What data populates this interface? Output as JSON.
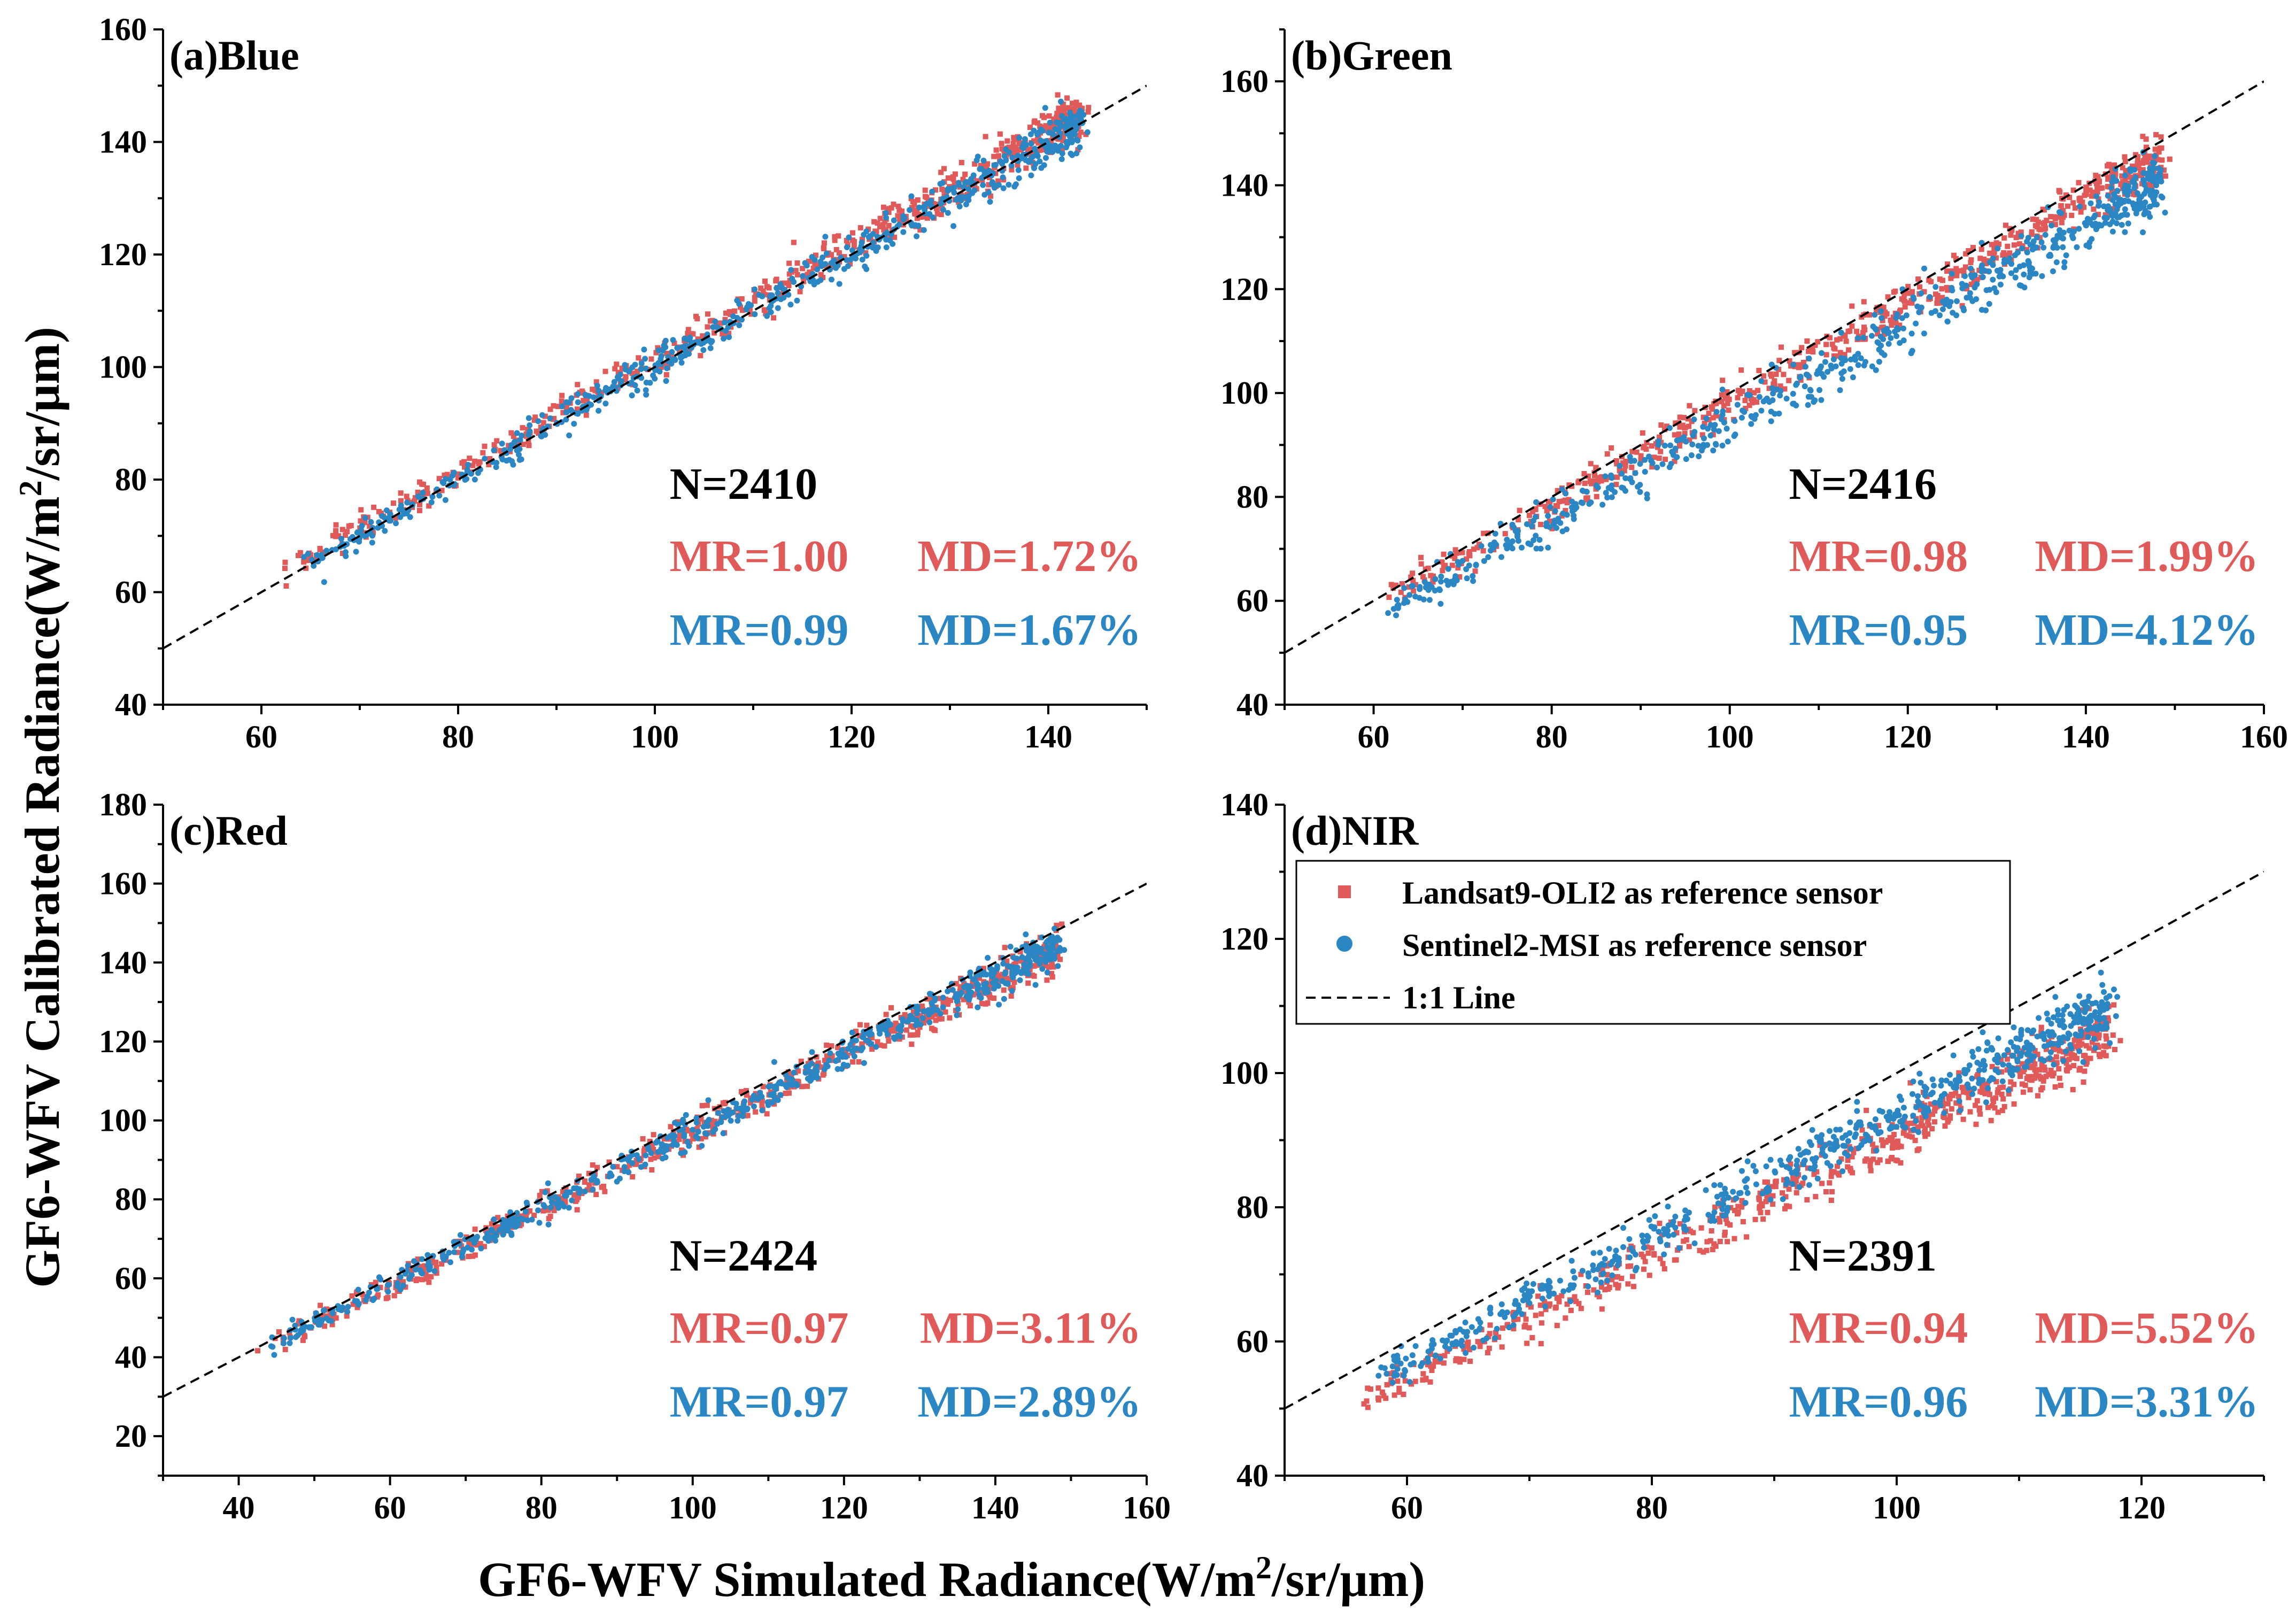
{
  "figure": {
    "ylabel": "GF6-WFV Calibrated Radiance(W/m²/sr/μm)",
    "ylabel_main": "GF6-WFV Calibrated Radiance(W/m",
    "ylabel_tail": "/sr/μm)",
    "xlabel": "GF6-WFV Simulated Radiance(W/m²/sr/μm)",
    "xlabel_main": "GF6-WFV Simulated Radiance(W/m",
    "xlabel_tail": "/sr/μm)",
    "unit_sup": "2"
  },
  "colors": {
    "landsat": "#e05a5a",
    "sentinel": "#2b86c4",
    "line": "#000000"
  },
  "legend": {
    "items": [
      {
        "label": "Landsat9-OLI2 as reference sensor",
        "marker": "square",
        "color": "#e05a5a"
      },
      {
        "label": "Sentinel2-MSI as reference sensor",
        "marker": "circle",
        "color": "#2b86c4"
      },
      {
        "label": "1:1 Line",
        "marker": "dashed-line",
        "color": "#000000"
      }
    ]
  },
  "chart_data": [
    {
      "type": "scatter",
      "title": "(a)Blue",
      "xlim": [
        50,
        150
      ],
      "ylim": [
        40,
        160
      ],
      "xticks": [
        60,
        80,
        100,
        120,
        140
      ],
      "yticks": [
        40,
        60,
        80,
        100,
        120,
        140,
        160
      ],
      "n_label": "N=2410",
      "stats": [
        {
          "mr": "MR=1.00",
          "md": "MD=1.72%",
          "color": "#e05a5a"
        },
        {
          "mr": "MR=0.99",
          "md": "MD=1.67%",
          "color": "#2b86c4"
        }
      ],
      "series": [
        {
          "name": "Landsat9-OLI2 as reference sensor",
          "color": "#e05a5a",
          "x_range": [
            63,
            143
          ],
          "slope": 1.0,
          "offset": 1.5,
          "spread": 2.0
        },
        {
          "name": "Sentinel2-MSI as reference sensor",
          "color": "#2b86c4",
          "x_range": [
            65,
            143
          ],
          "slope": 1.0,
          "offset": 0.0,
          "spread": 2.0
        }
      ]
    },
    {
      "type": "scatter",
      "title": "(b)Green",
      "xlim": [
        50,
        160
      ],
      "ylim": [
        40,
        170
      ],
      "xticks": [
        60,
        80,
        100,
        120,
        140,
        160
      ],
      "yticks": [
        40,
        60,
        80,
        100,
        120,
        140,
        160
      ],
      "n_label": "N=2416",
      "stats": [
        {
          "mr": "MR=0.98",
          "md": "MD=1.99%",
          "color": "#e05a5a"
        },
        {
          "mr": "MR=0.95",
          "md": "MD=4.12%",
          "color": "#2b86c4"
        }
      ],
      "series": [
        {
          "name": "Landsat9-OLI2 as reference sensor",
          "color": "#e05a5a",
          "x_range": [
            62,
            148
          ],
          "slope": 0.98,
          "offset": 0.0,
          "spread": 2.5
        },
        {
          "name": "Sentinel2-MSI as reference sensor",
          "color": "#2b86c4",
          "x_range": [
            62,
            148
          ],
          "slope": 0.95,
          "offset": -0.5,
          "spread": 3.0
        }
      ]
    },
    {
      "type": "scatter",
      "title": "(c)Red",
      "xlim": [
        30,
        160
      ],
      "ylim": [
        10,
        180
      ],
      "xticks": [
        40,
        60,
        80,
        100,
        120,
        140,
        160
      ],
      "yticks": [
        20,
        40,
        60,
        80,
        100,
        120,
        140,
        160,
        180
      ],
      "n_label": "N=2424",
      "stats": [
        {
          "mr": "MR=0.97",
          "md": "MD=3.11%",
          "color": "#e05a5a"
        },
        {
          "mr": "MR=0.97",
          "md": "MD=2.89%",
          "color": "#2b86c4"
        }
      ],
      "series": [
        {
          "name": "Landsat9-OLI2 as reference sensor",
          "color": "#e05a5a",
          "x_range": [
            44,
            148
          ],
          "slope": 0.97,
          "offset": 0.0,
          "spread": 2.5
        },
        {
          "name": "Sentinel2-MSI as reference sensor",
          "color": "#2b86c4",
          "x_range": [
            44,
            148
          ],
          "slope": 0.97,
          "offset": 0.3,
          "spread": 2.5
        }
      ]
    },
    {
      "type": "scatter",
      "title": "(d)NIR",
      "xlim": [
        50,
        130
      ],
      "ylim": [
        40,
        140
      ],
      "xticks": [
        60,
        80,
        100,
        120
      ],
      "yticks": [
        40,
        60,
        80,
        100,
        120,
        140
      ],
      "n_label": "N=2391",
      "stats": [
        {
          "mr": "MR=0.94",
          "md": "MD=5.52%",
          "color": "#e05a5a"
        },
        {
          "mr": "MR=0.96",
          "md": "MD=3.31%",
          "color": "#2b86c4"
        }
      ],
      "series": [
        {
          "name": "Landsat9-OLI2 as reference sensor",
          "color": "#e05a5a",
          "x_range": [
            57,
            117
          ],
          "slope": 0.9,
          "offset": 0.5,
          "spread": 2.2
        },
        {
          "name": "Sentinel2-MSI as reference sensor",
          "color": "#2b86c4",
          "x_range": [
            58,
            117
          ],
          "slope": 0.93,
          "offset": 0.8,
          "spread": 2.2
        }
      ]
    }
  ]
}
